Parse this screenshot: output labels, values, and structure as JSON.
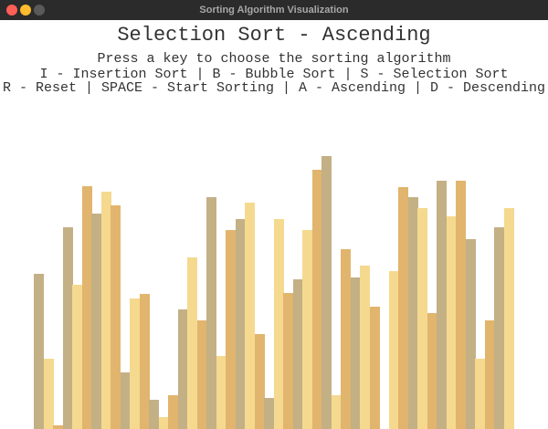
{
  "window": {
    "title": "Sorting Algorithm Visualization",
    "traffic_lights": {
      "close_color": "#ff5f57",
      "minimize_color": "#febc2e",
      "zoom_color": "#5a5a5a"
    }
  },
  "header": {
    "title": "Selection Sort - Ascending",
    "subtitle": "Press a key to choose the sorting algorithm",
    "keys_line_1": "I - Insertion Sort | B - Bubble Sort | S - Selection Sort",
    "keys_line_2": "R - Reset | SPACE - Start Sorting | A - Ascending | D - Descending"
  },
  "palette": {
    "background": "#ffffff",
    "bar_colors": [
      "#c3b085",
      "#f5d98f",
      "#e1b56d"
    ]
  },
  "bars": {
    "max_value": 300,
    "values": [
      170,
      77,
      4,
      221,
      158,
      266,
      236,
      260,
      245,
      62,
      143,
      148,
      32,
      13,
      37,
      131,
      188,
      119,
      254,
      80,
      218,
      230,
      248,
      104,
      34,
      230,
      149,
      164,
      218,
      284,
      299,
      37,
      197,
      166,
      179,
      134,
      0,
      173,
      265,
      254,
      242,
      127,
      272,
      233,
      272,
      208,
      77,
      119,
      221,
      242
    ]
  }
}
